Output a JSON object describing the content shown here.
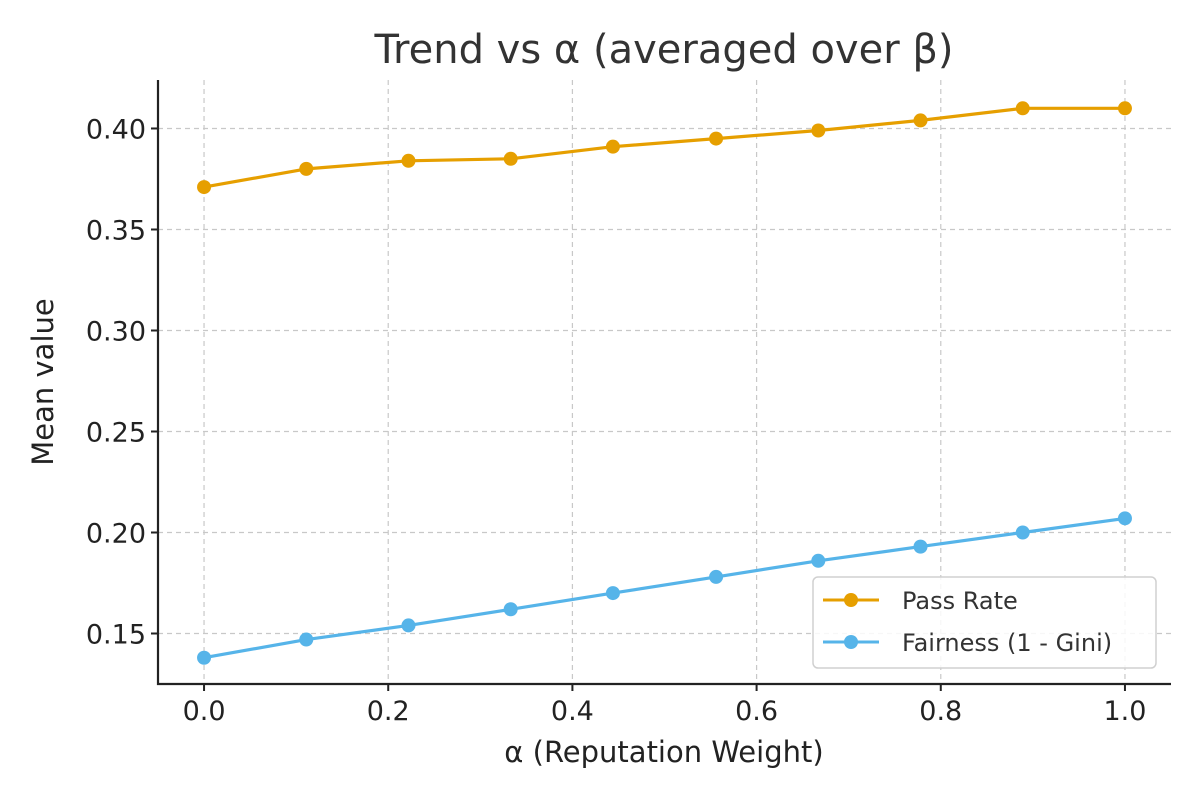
{
  "chart_data": {
    "type": "line",
    "title": "Trend vs α (averaged over β)",
    "xlabel": "α (Reputation Weight)",
    "ylabel": "Mean value",
    "xlim": [
      -0.05,
      1.05
    ],
    "ylim": [
      0.125,
      0.424
    ],
    "x_ticks": [
      0.0,
      0.2,
      0.4,
      0.6,
      0.8,
      1.0
    ],
    "x_tick_labels": [
      "0.0",
      "0.2",
      "0.4",
      "0.6",
      "0.8",
      "1.0"
    ],
    "y_ticks": [
      0.15,
      0.2,
      0.25,
      0.3,
      0.35,
      0.4
    ],
    "y_tick_labels": [
      "0.15",
      "0.20",
      "0.25",
      "0.30",
      "0.35",
      "0.40"
    ],
    "grid": true,
    "legend_position": "lower-right",
    "x": [
      0.0,
      0.111,
      0.222,
      0.333,
      0.444,
      0.556,
      0.667,
      0.778,
      0.889,
      1.0
    ],
    "series": [
      {
        "name": "Pass Rate",
        "color": "#E69F00",
        "values": [
          0.371,
          0.38,
          0.384,
          0.385,
          0.391,
          0.395,
          0.399,
          0.404,
          0.41,
          0.41
        ]
      },
      {
        "name": "Fairness (1 - Gini)",
        "color": "#56B4E9",
        "values": [
          0.138,
          0.147,
          0.154,
          0.162,
          0.17,
          0.178,
          0.186,
          0.193,
          0.2,
          0.207
        ]
      }
    ]
  }
}
